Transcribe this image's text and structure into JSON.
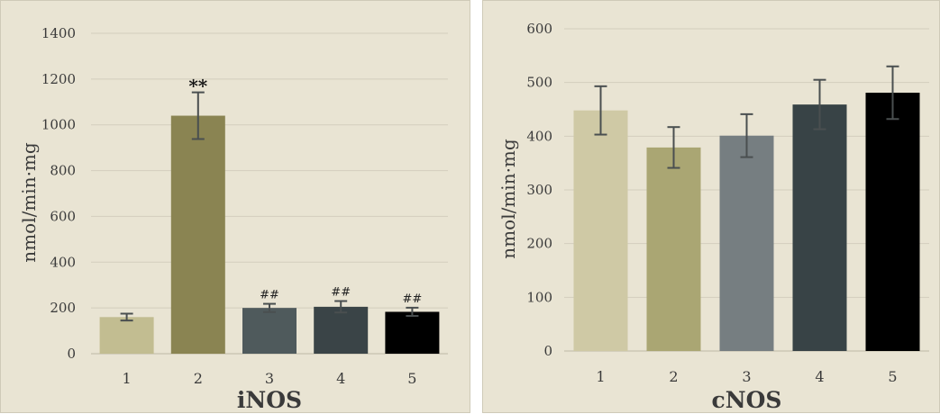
{
  "chart_data": [
    {
      "type": "bar",
      "xlabel": "iNOS",
      "ylabel": "nmol/min·mg",
      "categories": [
        "1",
        "2",
        "3",
        "4",
        "5"
      ],
      "values": [
        160,
        1040,
        200,
        205,
        183
      ],
      "errors": [
        15,
        102,
        18,
        25,
        18
      ],
      "annotations": [
        "",
        "**",
        "##",
        "##",
        "##"
      ],
      "colors": [
        "#c2bd91",
        "#8a8452",
        "#4f5a5c",
        "#3a4447",
        "#000000"
      ],
      "yticks": [
        0,
        200,
        400,
        600,
        800,
        1000,
        1200,
        1400
      ],
      "ylim": [
        0,
        1400
      ],
      "grid": true
    },
    {
      "type": "bar",
      "xlabel": "cNOS",
      "ylabel": "nmol/min·mg",
      "categories": [
        "1",
        "2",
        "3",
        "4",
        "5"
      ],
      "values": [
        448,
        379,
        401,
        459,
        481
      ],
      "errors": [
        45,
        38,
        40,
        46,
        49
      ],
      "annotations": [
        "",
        "",
        "",
        "",
        ""
      ],
      "colors": [
        "#cfc9a5",
        "#aaa673",
        "#767e81",
        "#384346",
        "#000000"
      ],
      "yticks": [
        0,
        100,
        200,
        300,
        400,
        500,
        600
      ],
      "ylim": [
        0,
        600
      ],
      "grid": true
    }
  ]
}
